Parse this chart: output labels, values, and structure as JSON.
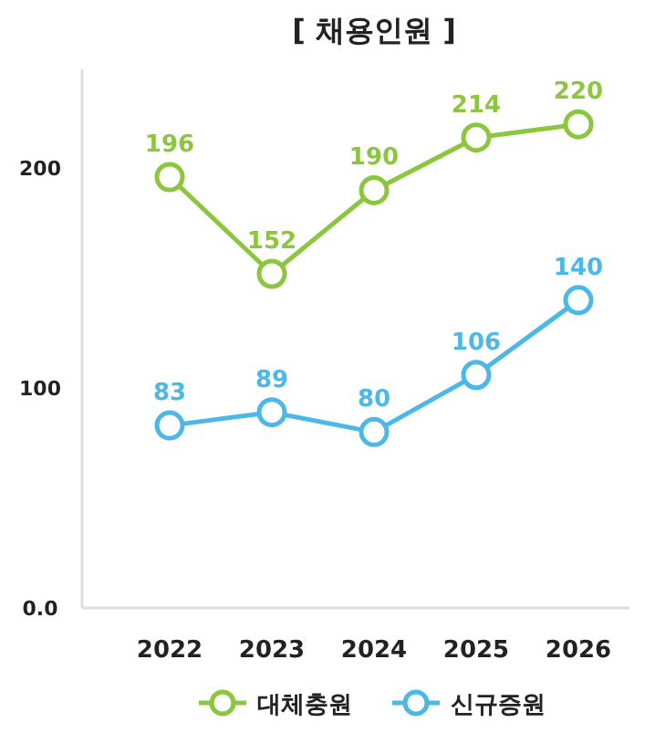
{
  "chart_data": {
    "type": "line",
    "title": "[ 채용인원 ]",
    "categories": [
      "2022",
      "2023",
      "2024",
      "2025",
      "2026"
    ],
    "series": [
      {
        "name": "대체충원",
        "color": "#8cc63f",
        "values": [
          196,
          152,
          190,
          214,
          220
        ]
      },
      {
        "name": "신규증원",
        "color": "#4cb8e8",
        "values": [
          83,
          89,
          80,
          106,
          140
        ]
      }
    ],
    "ylim": [
      0,
      245
    ],
    "yticks": [
      {
        "value": 0,
        "label": "0.0"
      },
      100,
      200
    ],
    "data_labels": true,
    "legend": "bottom",
    "marker": "circle"
  }
}
